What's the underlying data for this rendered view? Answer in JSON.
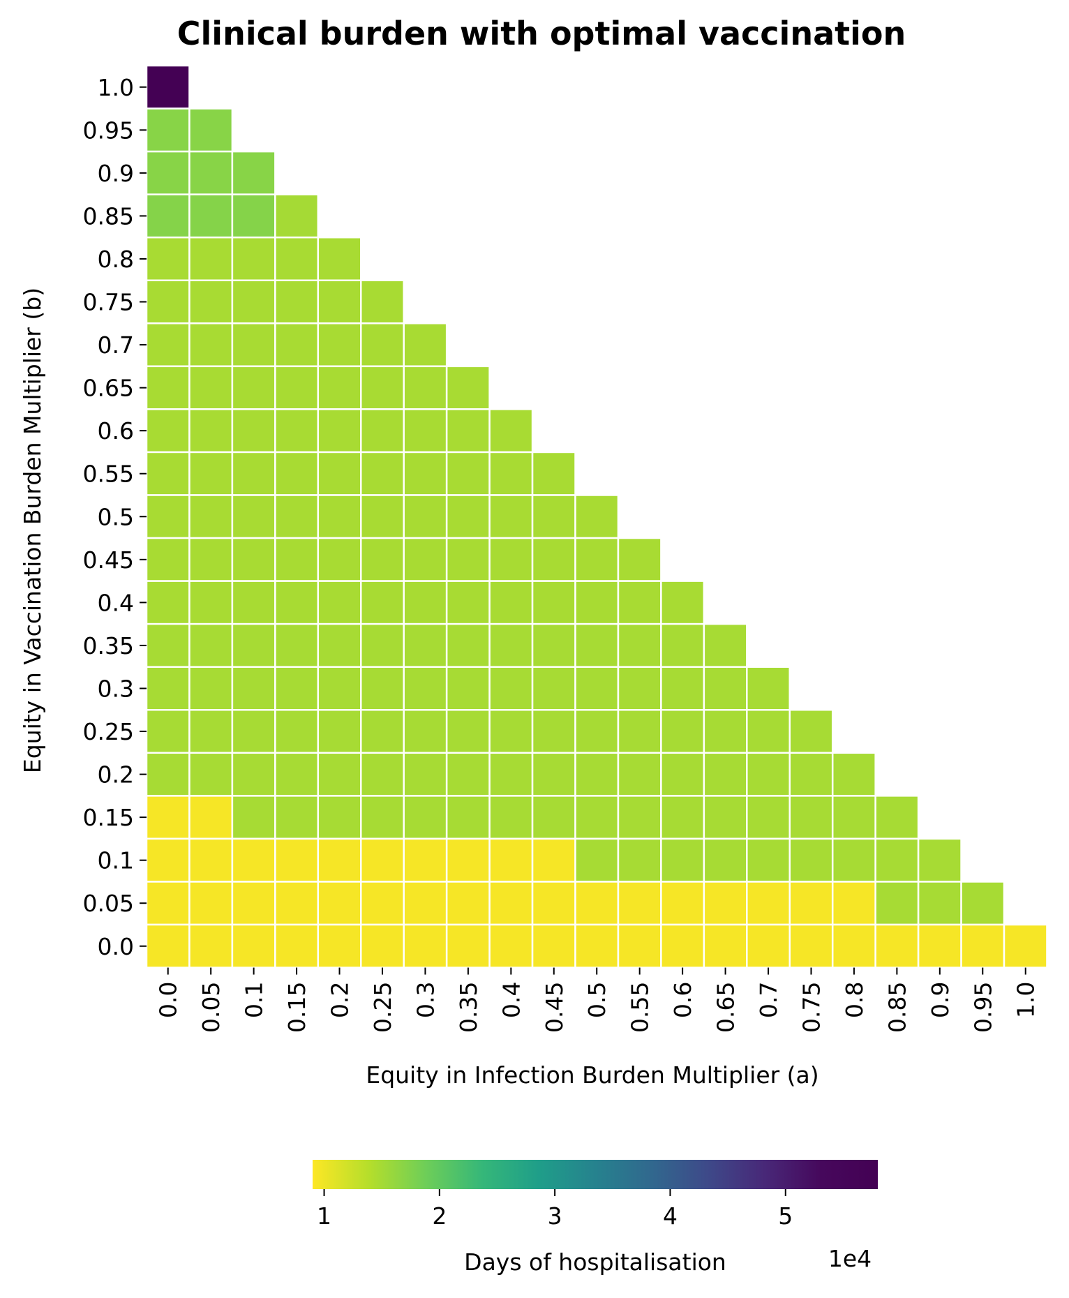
{
  "chart_data": {
    "type": "heatmap",
    "title": "Clinical burden with optimal vaccination",
    "xlabel": "Equity in Infection Burden Multiplier (a)",
    "ylabel": "Equity in Vaccination Burden Multiplier (b)",
    "x_ticks": [
      "0.0",
      "0.05",
      "0.1",
      "0.15",
      "0.2",
      "0.25",
      "0.3",
      "0.35",
      "0.4",
      "0.45",
      "0.5",
      "0.55",
      "0.6",
      "0.65",
      "0.7",
      "0.75",
      "0.8",
      "0.85",
      "0.9",
      "0.95",
      "1.0"
    ],
    "y_ticks": [
      "1.0",
      "0.95",
      "0.9",
      "0.85",
      "0.8",
      "0.75",
      "0.7",
      "0.65",
      "0.6",
      "0.55",
      "0.5",
      "0.45",
      "0.4",
      "0.35",
      "0.3",
      "0.25",
      "0.2",
      "0.15",
      "0.1",
      "0.05",
      "0.0"
    ],
    "values": [
      [
        58000
      ],
      [
        17000,
        17000
      ],
      [
        17000,
        17000,
        17000
      ],
      [
        17200,
        17200,
        17200,
        15000
      ],
      [
        14800,
        14800,
        14800,
        14800,
        14800
      ],
      [
        14800,
        14800,
        14800,
        14800,
        14800,
        14800
      ],
      [
        14800,
        14800,
        14800,
        14800,
        14800,
        14800,
        14800
      ],
      [
        14800,
        14800,
        14800,
        14800,
        14800,
        14800,
        14800,
        14800
      ],
      [
        14800,
        14800,
        14800,
        14800,
        14800,
        14800,
        14800,
        14800,
        14800
      ],
      [
        14800,
        14800,
        14800,
        14800,
        14800,
        14800,
        14800,
        14800,
        14800,
        14800
      ],
      [
        14800,
        14800,
        14800,
        14800,
        14800,
        14800,
        14800,
        14800,
        14800,
        14800,
        14800
      ],
      [
        14800,
        14800,
        14800,
        14800,
        14800,
        14800,
        14800,
        14800,
        14800,
        14800,
        14800,
        14800
      ],
      [
        14800,
        14800,
        14800,
        14800,
        14800,
        14800,
        14800,
        14800,
        14800,
        14800,
        14800,
        14800,
        14800
      ],
      [
        14900,
        14900,
        14900,
        14900,
        14900,
        14900,
        14900,
        14900,
        14900,
        14900,
        14900,
        14900,
        14900,
        14900
      ],
      [
        14900,
        14900,
        14900,
        14900,
        14900,
        14900,
        14900,
        14900,
        14900,
        14900,
        14900,
        14900,
        14900,
        14900,
        14900
      ],
      [
        14900,
        14900,
        14900,
        14900,
        14900,
        14900,
        14900,
        14900,
        14900,
        14900,
        14900,
        14900,
        14900,
        14900,
        14900,
        14900
      ],
      [
        14900,
        14900,
        14900,
        14900,
        14900,
        14900,
        14900,
        14900,
        14900,
        14900,
        14900,
        14900,
        14900,
        14900,
        14900,
        14900,
        14900
      ],
      [
        9500,
        9500,
        14900,
        14900,
        14900,
        14900,
        14900,
        14900,
        14900,
        14900,
        14900,
        14900,
        14900,
        14900,
        14900,
        14900,
        14900,
        14900
      ],
      [
        9500,
        9500,
        9500,
        9500,
        9500,
        9500,
        9500,
        9500,
        9500,
        9500,
        14900,
        14900,
        14900,
        14900,
        14900,
        14900,
        14900,
        14900,
        14900
      ],
      [
        9500,
        9500,
        9500,
        9500,
        9500,
        9500,
        9500,
        9500,
        9500,
        9500,
        9500,
        9500,
        9500,
        9500,
        9500,
        9500,
        9500,
        14900,
        14900,
        14900
      ],
      [
        9500,
        9500,
        9500,
        9500,
        9500,
        9500,
        9500,
        9500,
        9500,
        9500,
        9500,
        9500,
        9500,
        9500,
        9500,
        9500,
        9500,
        9500,
        9500,
        9500,
        9500
      ]
    ],
    "mask": "upper-right triangle (a + b > 1) hidden",
    "colormap": "viridis_r",
    "colorbar": {
      "label": "Days of hospitalisation",
      "ticks": [
        "1",
        "2",
        "3",
        "4",
        "5"
      ],
      "tick_values": [
        10000,
        20000,
        30000,
        40000,
        50000
      ],
      "range": [
        9000,
        58000
      ],
      "offset_text": "1e4",
      "orientation": "horizontal",
      "placement": "bottom"
    },
    "grid": false,
    "cell_border_color": "#ffffff"
  }
}
